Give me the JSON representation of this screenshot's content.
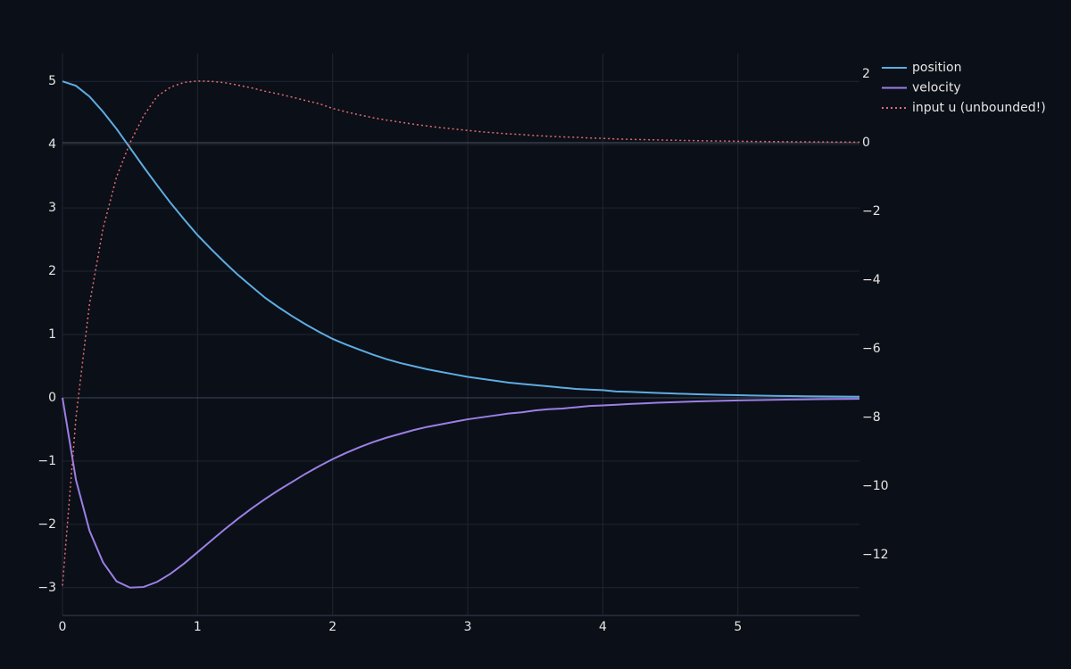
{
  "chart_data": {
    "type": "line",
    "x": [
      0,
      0.1,
      0.2,
      0.3,
      0.4,
      0.5,
      0.6,
      0.7,
      0.8,
      0.9,
      1,
      1.1,
      1.2,
      1.3,
      1.4,
      1.5,
      1.6,
      1.7,
      1.8,
      1.9,
      2,
      2.1,
      2.2,
      2.3,
      2.4,
      2.5,
      2.6,
      2.7,
      2.8,
      2.9,
      3,
      3.1,
      3.2,
      3.3,
      3.4,
      3.5,
      3.6,
      3.7,
      3.8,
      3.9,
      4,
      4.1,
      4.2,
      4.3,
      4.4,
      4.5,
      4.6,
      4.7,
      4.8,
      4.9,
      5,
      5.1,
      5.2,
      5.3,
      5.4,
      5.5,
      5.6,
      5.7,
      5.8,
      5.9
    ],
    "series": [
      {
        "name": "position",
        "color": "#5dade2",
        "dash": "solid",
        "values": [
          5,
          4.93,
          4.76,
          4.52,
          4.25,
          3.95,
          3.65,
          3.36,
          3.08,
          2.82,
          2.57,
          2.35,
          2.14,
          1.94,
          1.76,
          1.58,
          1.43,
          1.29,
          1.16,
          1.04,
          0.93,
          0.84,
          0.76,
          0.68,
          0.61,
          0.55,
          0.5,
          0.45,
          0.41,
          0.37,
          0.33,
          0.3,
          0.27,
          0.24,
          0.22,
          0.2,
          0.18,
          0.16,
          0.14,
          0.13,
          0.12,
          0.1,
          0.095,
          0.085,
          0.077,
          0.069,
          0.062,
          0.056,
          0.05,
          0.045,
          0.041,
          0.037,
          0.033,
          0.03,
          0.027,
          0.024,
          0.022,
          0.02,
          0.018,
          0.016
        ]
      },
      {
        "name": "velocity",
        "color": "#9b7fe6",
        "dash": "solid",
        "values": [
          0,
          -1.3,
          -2.1,
          -2.6,
          -2.9,
          -3,
          -2.99,
          -2.91,
          -2.78,
          -2.62,
          -2.44,
          -2.26,
          -2.08,
          -1.91,
          -1.75,
          -1.6,
          -1.46,
          -1.33,
          -1.2,
          -1.08,
          -0.97,
          -0.87,
          -0.78,
          -0.7,
          -0.63,
          -0.57,
          -0.51,
          -0.46,
          -0.42,
          -0.38,
          -0.34,
          -0.31,
          -0.28,
          -0.25,
          -0.23,
          -0.2,
          -0.18,
          -0.17,
          -0.15,
          -0.13,
          -0.12,
          -0.11,
          -0.098,
          -0.088,
          -0.079,
          -0.071,
          -0.064,
          -0.058,
          -0.052,
          -0.047,
          -0.042,
          -0.038,
          -0.034,
          -0.031,
          -0.028,
          -0.025,
          -0.022,
          -0.02,
          -0.018,
          -0.016
        ]
      },
      {
        "name": "input u (unbounded!)",
        "color": "#e06c75",
        "dash": "dot",
        "axis": "y2",
        "values": [
          -12.9,
          -8,
          -4.7,
          -2.5,
          -1,
          0,
          0.78,
          1.35,
          1.62,
          1.76,
          1.8,
          1.79,
          1.75,
          1.68,
          1.6,
          1.5,
          1.42,
          1.33,
          1.23,
          1.14,
          1,
          0.9,
          0.81,
          0.73,
          0.66,
          0.6,
          0.54,
          0.49,
          0.44,
          0.4,
          0.36,
          0.32,
          0.29,
          0.26,
          0.24,
          0.21,
          0.19,
          0.17,
          0.16,
          0.14,
          0.13,
          0.11,
          0.1,
          0.092,
          0.083,
          0.075,
          0.068,
          0.061,
          0.055,
          0.05,
          0.045,
          0.04,
          0.036,
          0.033,
          0.03,
          0.027,
          0.024,
          0.022,
          0.02,
          0.018
        ]
      }
    ],
    "xlim": [
      0,
      5.9
    ],
    "xticks": [
      0,
      1,
      2,
      3,
      4,
      5
    ],
    "ylim": [
      -3.44,
      5.44
    ],
    "yticks": [
      {
        "value": -3,
        "label": "−3"
      },
      {
        "value": -2,
        "label": "−2"
      },
      {
        "value": -1,
        "label": "−1"
      },
      0,
      1,
      2,
      3,
      4,
      5
    ],
    "y2lim": [
      -13.77,
      2.6
    ],
    "y2ticks": [
      {
        "value": -12,
        "label": "−12"
      },
      {
        "value": -10,
        "label": "−10"
      },
      {
        "value": -8,
        "label": "−8"
      },
      {
        "value": -6,
        "label": "−6"
      },
      {
        "value": -4,
        "label": "−4"
      },
      {
        "value": -2,
        "label": "−2"
      },
      0,
      2
    ],
    "grid": true,
    "legend": "top-right"
  }
}
